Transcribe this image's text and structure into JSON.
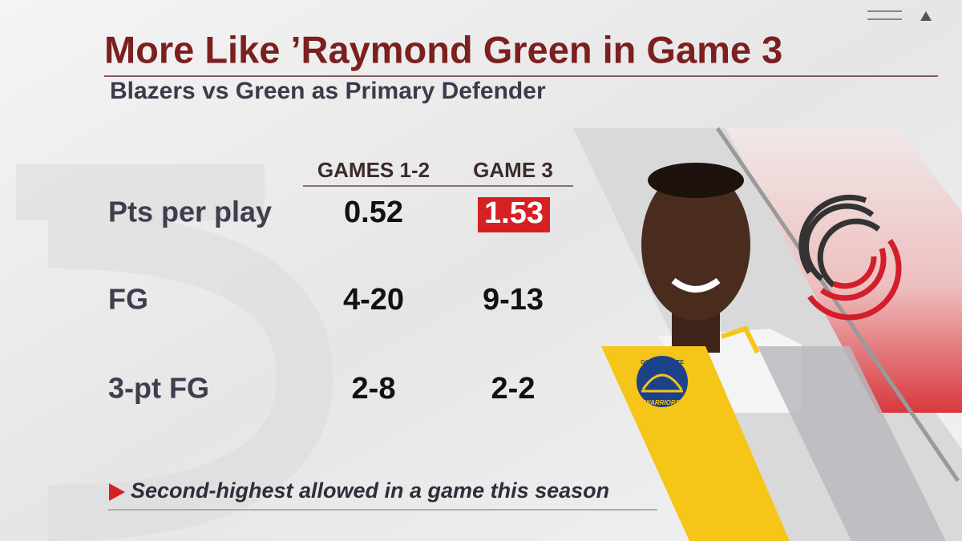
{
  "header": {
    "title": "More Like ’Raymond Green in Game 3",
    "subtitle": "Blazers vs Green as Primary Defender"
  },
  "table": {
    "columns": [
      "GAMES 1-2",
      "GAME 3"
    ],
    "rows": [
      [
        "Pts per play",
        0.52,
        1.53
      ],
      [
        "FG",
        "4-20",
        "9-13"
      ],
      [
        "3-pt FG",
        "2-8",
        "2-2"
      ]
    ]
  },
  "footnote": "Second-highest allowed in a game this season",
  "logos": {
    "warriors": {
      "top": "GOLDEN STATE",
      "bottom": "WARRIORS"
    }
  }
}
